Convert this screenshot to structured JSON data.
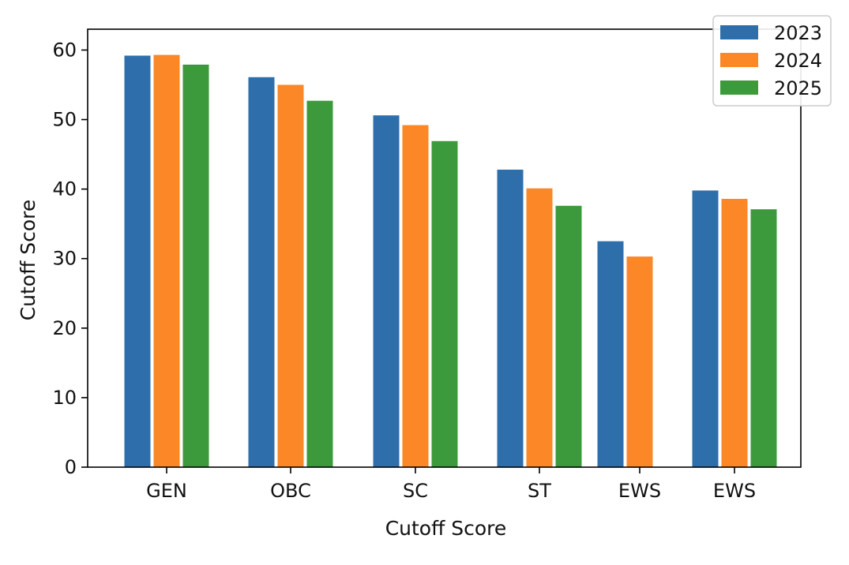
{
  "chart_data": {
    "type": "bar",
    "categories": [
      "GEN",
      "OBC",
      "SC",
      "ST",
      "EWS",
      "EWS"
    ],
    "series": [
      {
        "name": "2023",
        "color": "#2e6fab",
        "values": [
          59.2,
          56.1,
          50.6,
          42.8,
          32.5,
          39.8
        ]
      },
      {
        "name": "2024",
        "color": "#fb8726",
        "values": [
          59.3,
          55.0,
          49.2,
          40.1,
          30.3,
          38.6
        ]
      },
      {
        "name": "2025",
        "color": "#3d9a3c",
        "values": [
          57.9,
          52.7,
          46.9,
          37.6,
          null,
          37.1
        ]
      }
    ],
    "title": "",
    "xlabel": "Cutoff Score",
    "ylabel": "Cutoff Score",
    "ylim": [
      0,
      63
    ],
    "yticks": [
      0,
      10,
      20,
      30,
      40,
      50,
      60
    ],
    "legend_position": "top-right",
    "grid": false
  }
}
